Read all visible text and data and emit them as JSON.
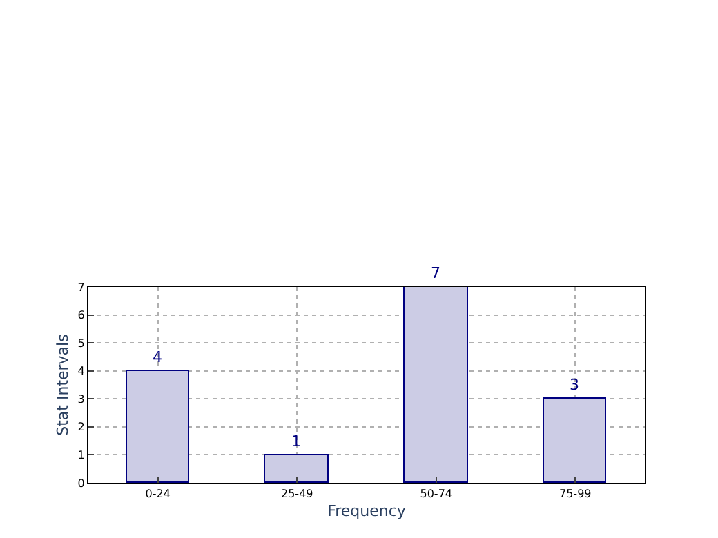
{
  "chart_data": {
    "type": "bar",
    "xlabel": "Frequency",
    "ylabel": "Stat Intervals",
    "categories": [
      "0-24",
      "25-49",
      "50-74",
      "75-99"
    ],
    "values": [
      4,
      1,
      7,
      3
    ],
    "color": "#ccccE5",
    "ylim": [
      0,
      7
    ],
    "yticks": [
      0,
      1,
      2,
      3,
      4,
      5,
      6,
      7
    ],
    "grid": true,
    "data_labels": true
  }
}
